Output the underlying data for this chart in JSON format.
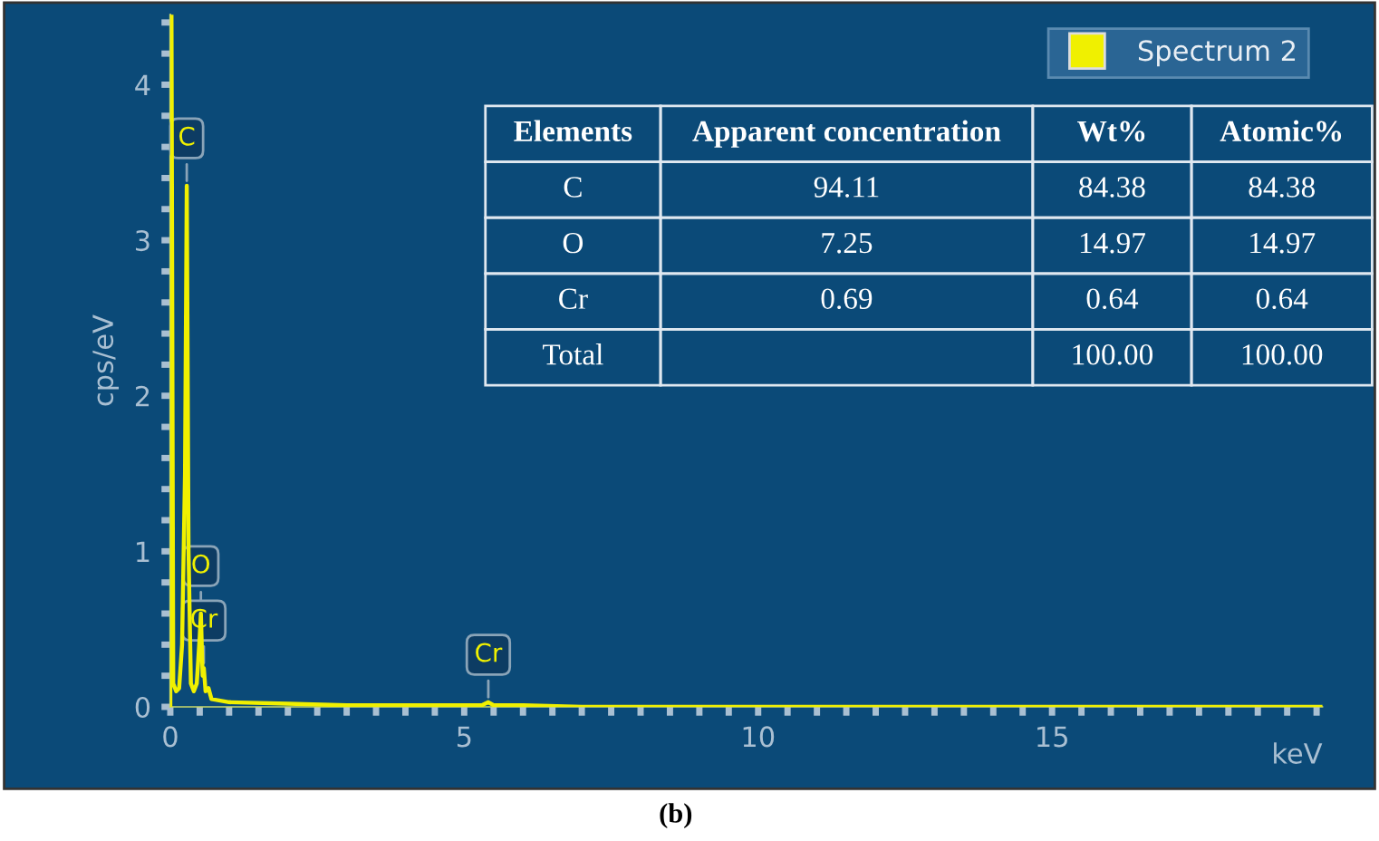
{
  "chart_data": [
    {
      "type": "line",
      "xlabel": "keV",
      "ylabel": "cps/eV",
      "legend": "top right",
      "grid": false,
      "marker": "none",
      "line_style": "solid",
      "xlim": [
        0,
        19.6
      ],
      "ylim": [
        0,
        4.45
      ],
      "xticks": [
        0,
        {
          "value": 0.5,
          "label": null
        },
        {
          "value": 1,
          "label": null
        },
        {
          "value": 1.5,
          "label": null
        },
        {
          "value": 2,
          "label": null
        },
        {
          "value": 2.5,
          "label": null
        },
        {
          "value": 3,
          "label": null
        },
        {
          "value": 3.5,
          "label": null
        },
        {
          "value": 4,
          "label": null
        },
        {
          "value": 4.5,
          "label": null
        },
        5,
        {
          "value": 5.5,
          "label": null
        },
        {
          "value": 6,
          "label": null
        },
        {
          "value": 6.5,
          "label": null
        },
        {
          "value": 7,
          "label": null
        },
        {
          "value": 7.5,
          "label": null
        },
        {
          "value": 8,
          "label": null
        },
        {
          "value": 8.5,
          "label": null
        },
        {
          "value": 9,
          "label": null
        },
        {
          "value": 9.5,
          "label": null
        },
        10,
        {
          "value": 10.5,
          "label": null
        },
        {
          "value": 11,
          "label": null
        },
        {
          "value": 11.5,
          "label": null
        },
        {
          "value": 12,
          "label": null
        },
        {
          "value": 12.5,
          "label": null
        },
        {
          "value": 13,
          "label": null
        },
        {
          "value": 13.5,
          "label": null
        },
        {
          "value": 14,
          "label": null
        },
        {
          "value": 14.5,
          "label": null
        },
        15,
        {
          "value": 15.5,
          "label": null
        },
        {
          "value": 16,
          "label": null
        },
        {
          "value": 16.5,
          "label": null
        },
        {
          "value": 17,
          "label": null
        },
        {
          "value": 17.5,
          "label": null
        },
        {
          "value": 18,
          "label": null
        },
        {
          "value": 18.5,
          "label": null
        },
        {
          "value": 19,
          "label": null
        },
        {
          "value": 19.5,
          "label": null
        }
      ],
      "yticks": [
        0,
        {
          "value": 0.2,
          "label": null
        },
        {
          "value": 0.4,
          "label": null
        },
        {
          "value": 0.6,
          "label": null
        },
        {
          "value": 0.8,
          "label": null
        },
        1,
        {
          "value": 1.2,
          "label": null
        },
        {
          "value": 1.4,
          "label": null
        },
        {
          "value": 1.6,
          "label": null
        },
        {
          "value": 1.8,
          "label": null
        },
        2,
        {
          "value": 2.2,
          "label": null
        },
        {
          "value": 2.4,
          "label": null
        },
        {
          "value": 2.6,
          "label": null
        },
        {
          "value": 2.8,
          "label": null
        },
        3,
        {
          "value": 3.2,
          "label": null
        },
        {
          "value": 3.4,
          "label": null
        },
        {
          "value": 3.6,
          "label": null
        },
        {
          "value": 3.8,
          "label": null
        },
        4,
        {
          "value": 4.2,
          "label": null
        },
        {
          "value": 4.4,
          "label": null
        }
      ],
      "x": [
        0,
        0.02,
        0.05,
        0.1,
        0.15,
        0.2,
        0.25,
        0.28,
        0.31,
        0.35,
        0.4,
        0.45,
        0.5,
        0.52,
        0.55,
        0.57,
        0.6,
        0.65,
        0.7,
        1,
        2,
        3,
        4,
        5,
        5.3,
        5.41,
        5.5,
        6,
        7,
        8,
        19.6
      ],
      "series": [
        {
          "name": "Spectrum 2",
          "color": "#f0f000",
          "values": [
            0,
            4.45,
            0.15,
            0.1,
            0.12,
            0.4,
            1.5,
            3.35,
            1.0,
            0.15,
            0.1,
            0.15,
            0.45,
            0.6,
            0.2,
            0.25,
            0.1,
            0.12,
            0.05,
            0.03,
            0.02,
            0.01,
            0.01,
            0.01,
            0.01,
            0.03,
            0.01,
            0.01,
            0,
            0,
            0
          ]
        }
      ],
      "annotations": [
        {
          "text": "C",
          "x": 0.28,
          "y": 3.35
        },
        {
          "text": "O",
          "x": 0.52,
          "y": 0.6
        },
        {
          "text": "Cr",
          "x": 0.57,
          "y": 0.25
        },
        {
          "text": "Cr",
          "x": 5.41,
          "y": 0.03
        },
        "(b)"
      ]
    },
    {
      "type": "other",
      "categories": [
        "Elements",
        "Apparent concentration",
        "Wt%",
        "Atomic%"
      ],
      "cell_labels": [
        [
          "C",
          "94.11",
          "84.38",
          "84.38"
        ],
        [
          "O",
          "7.25",
          "14.97",
          "14.97"
        ],
        [
          "Cr",
          "0.69",
          "0.64",
          "0.64"
        ],
        [
          "Total",
          null,
          "100.00",
          "100.00"
        ]
      ]
    }
  ]
}
